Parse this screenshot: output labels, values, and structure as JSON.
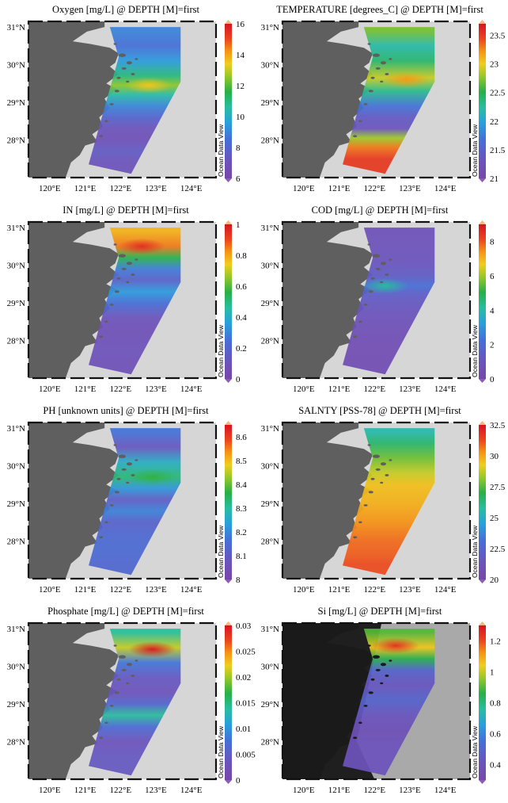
{
  "chart_data": [
    {
      "type": "heatmap",
      "title": "Oxygen [mg/L] @ DEPTH [M]=first",
      "x_ticks": [
        "120°E",
        "121°E",
        "122°E",
        "123°E",
        "124°E"
      ],
      "y_ticks": [
        "31°N",
        "30°N",
        "29°N",
        "28°N"
      ],
      "colorbar_ticks": [
        "16",
        "14",
        "12",
        "10",
        "8",
        "6"
      ],
      "colorbar_range": [
        6,
        16
      ],
      "colorbar_label": "Ocean Data View",
      "dark_background": false,
      "field": [
        {
          "lat": 30.9,
          "value": 9.0
        },
        {
          "lat": 30.5,
          "value": 8.5
        },
        {
          "lat": 30.1,
          "value": 9.5
        },
        {
          "lat": 29.7,
          "value": 11.0
        },
        {
          "lat": 29.45,
          "value": 12.5
        },
        {
          "lat": 29.2,
          "value": 10.5
        },
        {
          "lat": 28.9,
          "value": 9.0
        },
        {
          "lat": 28.6,
          "value": 8.0
        },
        {
          "lat": 28.3,
          "value": 7.0
        },
        {
          "lat": 28.0,
          "value": 6.8
        },
        {
          "lat": 27.7,
          "value": 7.5
        },
        {
          "lat": 27.4,
          "value": 7.0
        }
      ],
      "hotspot": {
        "lon": 122.8,
        "lat": 29.45,
        "value": 13.5
      }
    },
    {
      "type": "heatmap",
      "title": "TEMPERATURE [degrees_C] @ DEPTH [M]=first",
      "x_ticks": [
        "120°E",
        "121°E",
        "122°E",
        "123°E",
        "124°E"
      ],
      "y_ticks": [
        "31°N",
        "30°N",
        "29°N",
        "28°N"
      ],
      "colorbar_ticks": [
        "23.5",
        "23",
        "22.5",
        "22",
        "21.5",
        "21"
      ],
      "colorbar_range": [
        21,
        23.7
      ],
      "colorbar_label": "Ocean Data View",
      "dark_background": false,
      "field": [
        {
          "lat": 30.9,
          "value": 22.7
        },
        {
          "lat": 30.5,
          "value": 22.2
        },
        {
          "lat": 30.1,
          "value": 22.4
        },
        {
          "lat": 29.65,
          "value": 22.9
        },
        {
          "lat": 29.3,
          "value": 22.3
        },
        {
          "lat": 28.9,
          "value": 21.7
        },
        {
          "lat": 28.6,
          "value": 21.4
        },
        {
          "lat": 28.3,
          "value": 21.3
        },
        {
          "lat": 28.05,
          "value": 22.8
        },
        {
          "lat": 27.8,
          "value": 23.3
        },
        {
          "lat": 27.5,
          "value": 23.5
        }
      ],
      "hotspot": {
        "lon": 122.9,
        "lat": 29.6,
        "value": 23.2
      }
    },
    {
      "type": "heatmap",
      "title": "IN [mg/L] @ DEPTH [M]=first",
      "x_ticks": [
        "120°E",
        "121°E",
        "122°E",
        "123°E",
        "124°E"
      ],
      "y_ticks": [
        "31°N",
        "30°N",
        "29°N",
        "28°N"
      ],
      "colorbar_ticks": [
        "1",
        "0.8",
        "0.6",
        "0.4",
        "0.2",
        "0"
      ],
      "colorbar_range": [
        0,
        1
      ],
      "colorbar_label": "Ocean Data View",
      "dark_background": false,
      "field": [
        {
          "lat": 30.9,
          "value": 0.78
        },
        {
          "lat": 30.5,
          "value": 0.85
        },
        {
          "lat": 30.2,
          "value": 0.55
        },
        {
          "lat": 29.9,
          "value": 0.28
        },
        {
          "lat": 29.6,
          "value": 0.18
        },
        {
          "lat": 29.3,
          "value": 0.35
        },
        {
          "lat": 29.0,
          "value": 0.25
        },
        {
          "lat": 28.6,
          "value": 0.1
        },
        {
          "lat": 28.2,
          "value": 0.08
        },
        {
          "lat": 27.7,
          "value": 0.1
        },
        {
          "lat": 27.4,
          "value": 0.08
        }
      ],
      "hotspot": {
        "lon": 122.6,
        "lat": 30.5,
        "value": 0.95
      }
    },
    {
      "type": "heatmap",
      "title": "COD [mg/L] @ DEPTH [M]=first",
      "x_ticks": [
        "120°E",
        "121°E",
        "122°E",
        "123°E",
        "124°E"
      ],
      "y_ticks": [
        "31°N",
        "30°N",
        "29°N",
        "28°N"
      ],
      "colorbar_ticks": [
        "8",
        "6",
        "4",
        "2",
        "0"
      ],
      "colorbar_range": [
        0,
        9
      ],
      "colorbar_label": "Ocean Data View",
      "dark_background": false,
      "field": [
        {
          "lat": 30.9,
          "value": 0.8
        },
        {
          "lat": 30.5,
          "value": 0.9
        },
        {
          "lat": 30.1,
          "value": 1.0
        },
        {
          "lat": 29.7,
          "value": 1.4
        },
        {
          "lat": 29.45,
          "value": 2.2
        },
        {
          "lat": 29.2,
          "value": 1.4
        },
        {
          "lat": 28.8,
          "value": 1.0
        },
        {
          "lat": 28.4,
          "value": 0.7
        },
        {
          "lat": 28.0,
          "value": 0.6
        },
        {
          "lat": 27.6,
          "value": 0.5
        }
      ],
      "hotspot": {
        "lon": 122.3,
        "lat": 29.45,
        "value": 4.2
      }
    },
    {
      "type": "heatmap",
      "title": "PH [unknown units] @ DEPTH [M]=first",
      "x_ticks": [
        "120°E",
        "121°E",
        "122°E",
        "123°E",
        "124°E"
      ],
      "y_ticks": [
        "31°N",
        "30°N",
        "29°N",
        "28°N"
      ],
      "colorbar_ticks": [
        "8.6",
        "8.5",
        "8.4",
        "8.3",
        "8.2",
        "8.1",
        "8"
      ],
      "colorbar_range": [
        8.0,
        8.65
      ],
      "colorbar_label": "Ocean Data View",
      "dark_background": false,
      "field": [
        {
          "lat": 30.9,
          "value": 8.17
        },
        {
          "lat": 30.5,
          "value": 8.08
        },
        {
          "lat": 30.1,
          "value": 8.26
        },
        {
          "lat": 29.7,
          "value": 8.33
        },
        {
          "lat": 29.4,
          "value": 8.22
        },
        {
          "lat": 29.1,
          "value": 8.1
        },
        {
          "lat": 28.8,
          "value": 8.19
        },
        {
          "lat": 28.5,
          "value": 8.12
        },
        {
          "lat": 28.1,
          "value": 8.15
        },
        {
          "lat": 27.7,
          "value": 8.15
        },
        {
          "lat": 27.4,
          "value": 8.14
        }
      ],
      "hotspot": {
        "lon": 122.9,
        "lat": 29.7,
        "value": 8.37
      }
    },
    {
      "type": "heatmap",
      "title": "SALNTY [PSS-78] @ DEPTH [M]=first",
      "x_ticks": [
        "120°E",
        "121°E",
        "122°E",
        "123°E",
        "124°E"
      ],
      "y_ticks": [
        "31°N",
        "30°N",
        "29°N",
        "28°N"
      ],
      "colorbar_ticks": [
        "32.5",
        "30",
        "27.5",
        "25",
        "22.5",
        "20"
      ],
      "colorbar_range": [
        20,
        32.5
      ],
      "colorbar_label": "Ocean Data View",
      "dark_background": false,
      "field": [
        {
          "lat": 30.9,
          "value": 25.5
        },
        {
          "lat": 30.6,
          "value": 26.5
        },
        {
          "lat": 30.2,
          "value": 27.8
        },
        {
          "lat": 29.8,
          "value": 28.8
        },
        {
          "lat": 29.5,
          "value": 29.5
        },
        {
          "lat": 29.0,
          "value": 29.8
        },
        {
          "lat": 28.5,
          "value": 30.3
        },
        {
          "lat": 28.0,
          "value": 30.8
        },
        {
          "lat": 27.6,
          "value": 31.0
        },
        {
          "lat": 27.4,
          "value": 31.2
        }
      ],
      "hotspot": null
    },
    {
      "type": "heatmap",
      "title": "Phosphate [mg/L] @ DEPTH [M]=first",
      "x_ticks": [
        "120°E",
        "121°E",
        "122°E",
        "123°E",
        "124°E"
      ],
      "y_ticks": [
        "31°N",
        "30°N",
        "29°N",
        "28°N"
      ],
      "colorbar_ticks": [
        "0.03",
        "0.025",
        "0.02",
        "0.015",
        "0.01",
        "0.005",
        "0"
      ],
      "colorbar_range": [
        0,
        0.03
      ],
      "colorbar_label": "Ocean Data View",
      "dark_background": false,
      "field": [
        {
          "lat": 30.9,
          "value": 0.014
        },
        {
          "lat": 30.5,
          "value": 0.021
        },
        {
          "lat": 30.1,
          "value": 0.008
        },
        {
          "lat": 29.7,
          "value": 0.004
        },
        {
          "lat": 29.3,
          "value": 0.003
        },
        {
          "lat": 29.0,
          "value": 0.006
        },
        {
          "lat": 28.7,
          "value": 0.014
        },
        {
          "lat": 28.4,
          "value": 0.007
        },
        {
          "lat": 28.0,
          "value": 0.003
        },
        {
          "lat": 27.6,
          "value": 0.004
        }
      ],
      "hotspot": {
        "lon": 122.9,
        "lat": 30.45,
        "value": 0.03
      }
    },
    {
      "type": "heatmap",
      "title": "Si [mg/L] @ DEPTH [M]=first",
      "x_ticks": [
        "120°E",
        "121°E",
        "122°E",
        "123°E",
        "124°E"
      ],
      "y_ticks": [
        "31°N",
        "30°N",
        "29°N",
        "28°N"
      ],
      "colorbar_ticks": [
        "1.2",
        "1",
        "0.8",
        "0.6",
        "0.4"
      ],
      "colorbar_range": [
        0.3,
        1.3
      ],
      "colorbar_label": "Ocean Data View",
      "dark_background": true,
      "field": [
        {
          "lat": 30.9,
          "value": 0.9
        },
        {
          "lat": 30.5,
          "value": 1.05
        },
        {
          "lat": 30.2,
          "value": 0.85
        },
        {
          "lat": 29.9,
          "value": 0.5
        },
        {
          "lat": 29.5,
          "value": 0.42
        },
        {
          "lat": 29.1,
          "value": 0.5
        },
        {
          "lat": 28.7,
          "value": 0.42
        },
        {
          "lat": 28.3,
          "value": 0.38
        },
        {
          "lat": 27.9,
          "value": 0.4
        },
        {
          "lat": 27.5,
          "value": 0.4
        }
      ],
      "hotspot": {
        "lon": 122.6,
        "lat": 30.55,
        "value": 1.25
      }
    }
  ]
}
